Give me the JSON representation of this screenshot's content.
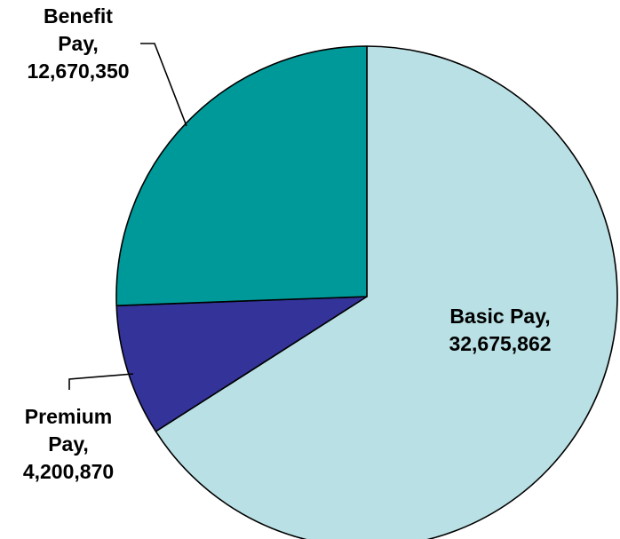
{
  "chart_data": {
    "type": "pie",
    "title": "",
    "slices": [
      {
        "label": "Basic Pay",
        "value": 32675862,
        "value_text": "32,675,862",
        "color": "#b9e0e4"
      },
      {
        "label": "Premium Pay",
        "value": 4200870,
        "value_text": "4,200,870",
        "color": "#333399"
      },
      {
        "label": "Benefit Pay",
        "value": 12670350,
        "value_text": "12,670,350",
        "color": "#009999"
      }
    ],
    "start_angle_deg": 0,
    "direction": "clockwise",
    "legend": "none",
    "outline_color": "#000000"
  }
}
